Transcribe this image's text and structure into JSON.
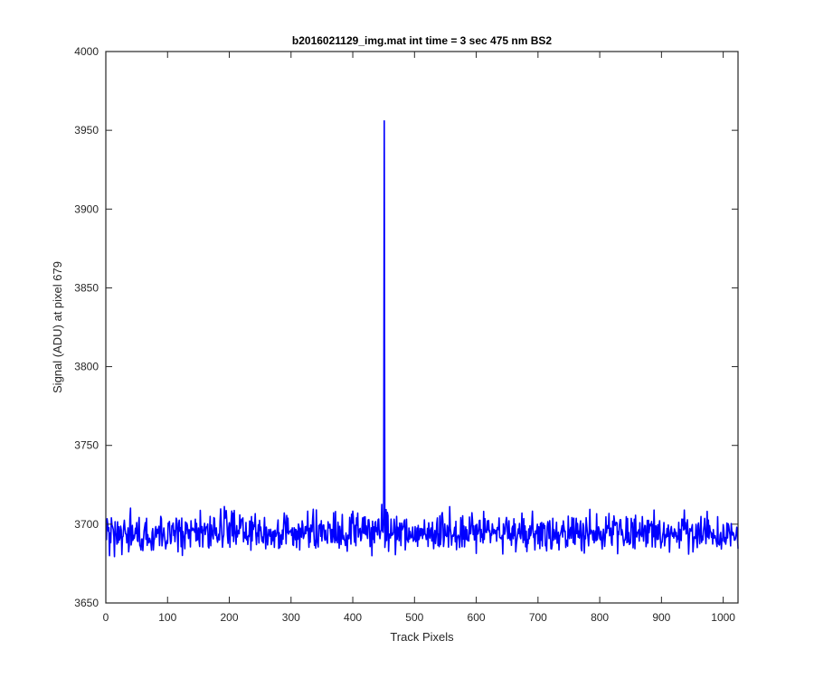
{
  "chart_data": {
    "type": "line",
    "title": "b2016021129_img.mat int time = 3 sec  475 nm BS2",
    "xlabel": "Track Pixels",
    "ylabel": "Signal (ADU) at pixel 679",
    "xlim": [
      0,
      1024
    ],
    "ylim": [
      3650,
      4000
    ],
    "xticks": [
      0,
      100,
      200,
      300,
      400,
      500,
      600,
      700,
      800,
      900,
      1000
    ],
    "yticks": [
      3650,
      3700,
      3750,
      3800,
      3850,
      3900,
      3950,
      4000
    ],
    "grid": false,
    "legend": "none",
    "series": [
      {
        "color": "#0000ff",
        "x_start": 1,
        "x_end": 1024,
        "baseline": 3695,
        "noise_amplitude": 14,
        "spike_x": 451,
        "spike_value": 3956,
        "min_value": 3663,
        "max_value": 3728
      }
    ]
  }
}
